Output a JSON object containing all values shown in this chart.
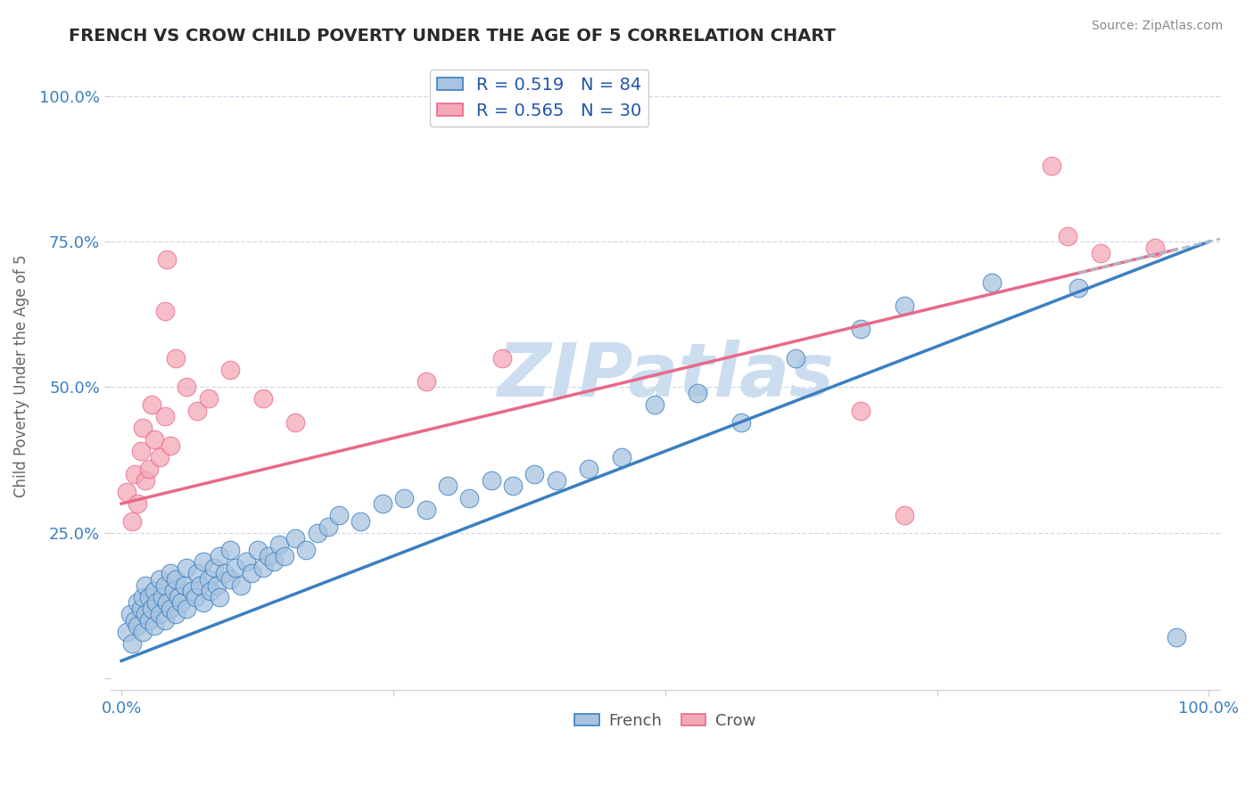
{
  "title": "FRENCH VS CROW CHILD POVERTY UNDER THE AGE OF 5 CORRELATION CHART",
  "source_text": "Source: ZipAtlas.com",
  "ylabel_text": "Child Poverty Under the Age of 5",
  "french_R": 0.519,
  "french_N": 84,
  "crow_R": 0.565,
  "crow_N": 30,
  "french_color": "#a8c4e0",
  "crow_color": "#f4a8b8",
  "french_line_color": "#3a7fc1",
  "crow_line_color": "#e8698a",
  "watermark": "ZIPatlas",
  "watermark_color": "#ccddf0",
  "background_color": "#ffffff",
  "title_color": "#2a2a2a",
  "source_color": "#888888",
  "tick_color": "#3a7fc1",
  "ylabel_color": "#666666",
  "grid_color": "#d0d8e8",
  "french_line_intercept": 0.03,
  "french_line_slope": 0.72,
  "crow_line_intercept": 0.3,
  "crow_line_slope": 0.45,
  "french_points": [
    [
      0.005,
      0.08
    ],
    [
      0.008,
      0.11
    ],
    [
      0.01,
      0.06
    ],
    [
      0.012,
      0.1
    ],
    [
      0.015,
      0.09
    ],
    [
      0.015,
      0.13
    ],
    [
      0.018,
      0.12
    ],
    [
      0.02,
      0.08
    ],
    [
      0.02,
      0.14
    ],
    [
      0.022,
      0.11
    ],
    [
      0.022,
      0.16
    ],
    [
      0.025,
      0.1
    ],
    [
      0.025,
      0.14
    ],
    [
      0.028,
      0.12
    ],
    [
      0.03,
      0.09
    ],
    [
      0.03,
      0.15
    ],
    [
      0.032,
      0.13
    ],
    [
      0.035,
      0.11
    ],
    [
      0.035,
      0.17
    ],
    [
      0.038,
      0.14
    ],
    [
      0.04,
      0.1
    ],
    [
      0.04,
      0.16
    ],
    [
      0.042,
      0.13
    ],
    [
      0.045,
      0.12
    ],
    [
      0.045,
      0.18
    ],
    [
      0.048,
      0.15
    ],
    [
      0.05,
      0.11
    ],
    [
      0.05,
      0.17
    ],
    [
      0.052,
      0.14
    ],
    [
      0.055,
      0.13
    ],
    [
      0.058,
      0.16
    ],
    [
      0.06,
      0.12
    ],
    [
      0.06,
      0.19
    ],
    [
      0.065,
      0.15
    ],
    [
      0.068,
      0.14
    ],
    [
      0.07,
      0.18
    ],
    [
      0.072,
      0.16
    ],
    [
      0.075,
      0.13
    ],
    [
      0.075,
      0.2
    ],
    [
      0.08,
      0.17
    ],
    [
      0.082,
      0.15
    ],
    [
      0.085,
      0.19
    ],
    [
      0.088,
      0.16
    ],
    [
      0.09,
      0.14
    ],
    [
      0.09,
      0.21
    ],
    [
      0.095,
      0.18
    ],
    [
      0.1,
      0.17
    ],
    [
      0.1,
      0.22
    ],
    [
      0.105,
      0.19
    ],
    [
      0.11,
      0.16
    ],
    [
      0.115,
      0.2
    ],
    [
      0.12,
      0.18
    ],
    [
      0.125,
      0.22
    ],
    [
      0.13,
      0.19
    ],
    [
      0.135,
      0.21
    ],
    [
      0.14,
      0.2
    ],
    [
      0.145,
      0.23
    ],
    [
      0.15,
      0.21
    ],
    [
      0.16,
      0.24
    ],
    [
      0.17,
      0.22
    ],
    [
      0.18,
      0.25
    ],
    [
      0.19,
      0.26
    ],
    [
      0.2,
      0.28
    ],
    [
      0.22,
      0.27
    ],
    [
      0.24,
      0.3
    ],
    [
      0.26,
      0.31
    ],
    [
      0.28,
      0.29
    ],
    [
      0.3,
      0.33
    ],
    [
      0.32,
      0.31
    ],
    [
      0.34,
      0.34
    ],
    [
      0.36,
      0.33
    ],
    [
      0.38,
      0.35
    ],
    [
      0.4,
      0.34
    ],
    [
      0.43,
      0.36
    ],
    [
      0.46,
      0.38
    ],
    [
      0.49,
      0.47
    ],
    [
      0.53,
      0.49
    ],
    [
      0.57,
      0.44
    ],
    [
      0.62,
      0.55
    ],
    [
      0.68,
      0.6
    ],
    [
      0.72,
      0.64
    ],
    [
      0.8,
      0.68
    ],
    [
      0.88,
      0.67
    ],
    [
      0.97,
      0.07
    ]
  ],
  "crow_points": [
    [
      0.005,
      0.32
    ],
    [
      0.01,
      0.27
    ],
    [
      0.012,
      0.35
    ],
    [
      0.015,
      0.3
    ],
    [
      0.018,
      0.39
    ],
    [
      0.02,
      0.43
    ],
    [
      0.022,
      0.34
    ],
    [
      0.025,
      0.36
    ],
    [
      0.028,
      0.47
    ],
    [
      0.03,
      0.41
    ],
    [
      0.035,
      0.38
    ],
    [
      0.04,
      0.45
    ],
    [
      0.045,
      0.4
    ],
    [
      0.05,
      0.55
    ],
    [
      0.06,
      0.5
    ],
    [
      0.07,
      0.46
    ],
    [
      0.08,
      0.48
    ],
    [
      0.04,
      0.63
    ],
    [
      0.042,
      0.72
    ],
    [
      0.1,
      0.53
    ],
    [
      0.13,
      0.48
    ],
    [
      0.16,
      0.44
    ],
    [
      0.28,
      0.51
    ],
    [
      0.35,
      0.55
    ],
    [
      0.68,
      0.46
    ],
    [
      0.72,
      0.28
    ],
    [
      0.855,
      0.88
    ],
    [
      0.87,
      0.76
    ],
    [
      0.9,
      0.73
    ],
    [
      0.95,
      0.74
    ]
  ]
}
